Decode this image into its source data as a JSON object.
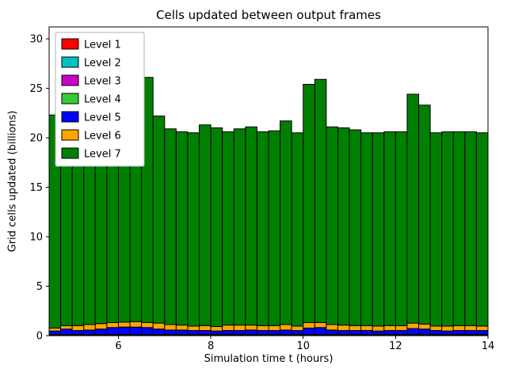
{
  "chart_data": {
    "type": "bar",
    "stacked": true,
    "title": "Cells updated between output frames",
    "xlabel": "Simulation time t (hours)",
    "ylabel": "Grid cells updated (billions)",
    "legend_position": "upper left",
    "grid": false,
    "bar_width": 0.25,
    "bar_edge_color": "#000000",
    "xlim": [
      4.5,
      14
    ],
    "ylim": [
      0,
      31.2
    ],
    "xticks": [
      6,
      8,
      10,
      12,
      14
    ],
    "yticks": [
      0,
      5,
      10,
      15,
      20,
      25,
      30
    ],
    "x": [
      4.5,
      4.75,
      5.0,
      5.25,
      5.5,
      5.75,
      6.0,
      6.25,
      6.5,
      6.75,
      7.0,
      7.25,
      7.5,
      7.75,
      8.0,
      8.25,
      8.5,
      8.75,
      9.0,
      9.25,
      9.5,
      9.75,
      10.0,
      10.25,
      10.5,
      10.75,
      11.0,
      11.25,
      11.5,
      11.75,
      12.0,
      12.25,
      12.5,
      12.75,
      13.0,
      13.25,
      13.5,
      13.75
    ],
    "series": [
      {
        "name": "Level 1",
        "color": "#ff0000",
        "values": [
          0.02,
          0.02,
          0.02,
          0.02,
          0.02,
          0.02,
          0.02,
          0.02,
          0.02,
          0.02,
          0.02,
          0.02,
          0.02,
          0.02,
          0.02,
          0.02,
          0.02,
          0.02,
          0.02,
          0.02,
          0.02,
          0.02,
          0.02,
          0.02,
          0.02,
          0.02,
          0.02,
          0.02,
          0.02,
          0.02,
          0.02,
          0.02,
          0.02,
          0.02,
          0.02,
          0.02,
          0.02,
          0.02
        ]
      },
      {
        "name": "Level 2",
        "color": "#00c0c0",
        "values": [
          0.02,
          0.02,
          0.02,
          0.02,
          0.02,
          0.02,
          0.02,
          0.02,
          0.02,
          0.02,
          0.02,
          0.02,
          0.02,
          0.02,
          0.02,
          0.02,
          0.02,
          0.02,
          0.02,
          0.02,
          0.02,
          0.02,
          0.02,
          0.02,
          0.02,
          0.02,
          0.02,
          0.02,
          0.02,
          0.02,
          0.02,
          0.02,
          0.02,
          0.02,
          0.02,
          0.02,
          0.02,
          0.02
        ]
      },
      {
        "name": "Level 3",
        "color": "#cc00cc",
        "values": [
          0.03,
          0.03,
          0.03,
          0.03,
          0.03,
          0.03,
          0.03,
          0.03,
          0.03,
          0.03,
          0.03,
          0.03,
          0.03,
          0.03,
          0.03,
          0.03,
          0.03,
          0.03,
          0.03,
          0.03,
          0.03,
          0.03,
          0.03,
          0.03,
          0.03,
          0.03,
          0.03,
          0.03,
          0.03,
          0.03,
          0.03,
          0.03,
          0.03,
          0.03,
          0.03,
          0.03,
          0.03,
          0.03
        ]
      },
      {
        "name": "Level 4",
        "color": "#32cd32",
        "values": [
          0.05,
          0.05,
          0.05,
          0.05,
          0.05,
          0.05,
          0.05,
          0.05,
          0.05,
          0.05,
          0.05,
          0.05,
          0.05,
          0.05,
          0.05,
          0.05,
          0.05,
          0.05,
          0.05,
          0.05,
          0.05,
          0.05,
          0.05,
          0.05,
          0.05,
          0.05,
          0.05,
          0.05,
          0.05,
          0.05,
          0.05,
          0.05,
          0.05,
          0.05,
          0.05,
          0.05,
          0.05,
          0.05
        ]
      },
      {
        "name": "Level 5",
        "color": "#0000ff",
        "values": [
          0.35,
          0.55,
          0.4,
          0.45,
          0.55,
          0.7,
          0.75,
          0.75,
          0.7,
          0.55,
          0.45,
          0.45,
          0.4,
          0.4,
          0.35,
          0.4,
          0.4,
          0.45,
          0.4,
          0.4,
          0.45,
          0.4,
          0.65,
          0.7,
          0.45,
          0.4,
          0.4,
          0.4,
          0.35,
          0.4,
          0.4,
          0.6,
          0.55,
          0.4,
          0.35,
          0.4,
          0.4,
          0.4
        ]
      },
      {
        "name": "Level 6",
        "color": "#ffa500",
        "values": [
          0.3,
          0.35,
          0.5,
          0.55,
          0.55,
          0.5,
          0.5,
          0.55,
          0.5,
          0.6,
          0.55,
          0.5,
          0.45,
          0.5,
          0.45,
          0.55,
          0.55,
          0.5,
          0.5,
          0.5,
          0.55,
          0.45,
          0.55,
          0.5,
          0.55,
          0.55,
          0.5,
          0.5,
          0.5,
          0.5,
          0.5,
          0.55,
          0.5,
          0.45,
          0.5,
          0.5,
          0.5,
          0.45
        ]
      },
      {
        "name": "Level 7",
        "color": "#008000",
        "values": [
          21.53,
          19.68,
          19.88,
          19.88,
          25.18,
          24.98,
          24.53,
          24.38,
          24.78,
          20.93,
          19.78,
          19.53,
          19.53,
          20.28,
          20.08,
          19.53,
          19.83,
          20.03,
          19.58,
          19.68,
          20.58,
          19.53,
          24.08,
          24.58,
          19.98,
          19.93,
          19.78,
          19.48,
          19.53,
          19.58,
          19.58,
          23.13,
          22.13,
          19.53,
          19.63,
          19.58,
          19.58,
          19.53
        ]
      }
    ],
    "totals": [
      22.3,
      20.7,
      20.9,
      21.0,
      26.4,
      26.3,
      25.9,
      25.8,
      26.1,
      22.2,
      20.9,
      20.6,
      20.5,
      21.3,
      21.0,
      20.6,
      20.9,
      21.1,
      20.6,
      20.7,
      21.7,
      20.5,
      25.4,
      25.9,
      21.1,
      21.0,
      20.8,
      20.5,
      20.5,
      20.6,
      20.6,
      24.4,
      23.3,
      20.5,
      20.6,
      20.6,
      20.6,
      20.5
    ]
  },
  "legend": {
    "border_color": "#b3b3b3",
    "background": "#ffffff"
  }
}
